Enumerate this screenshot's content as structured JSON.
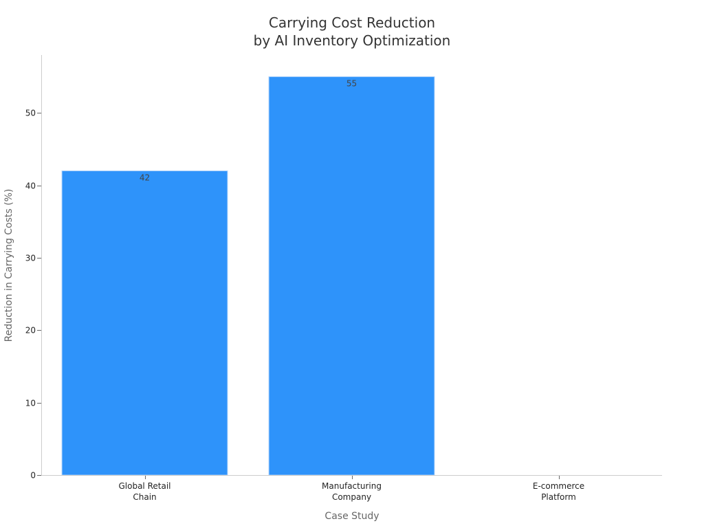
{
  "chart_data": {
    "type": "bar",
    "title": [
      "Carrying Cost Reduction",
      "by AI Inventory Optimization"
    ],
    "xlabel": "Case Study",
    "ylabel": "Reduction in Carrying Costs (%)",
    "categories": [
      [
        "Global Retail",
        "Chain"
      ],
      [
        "Manufacturing",
        "Company"
      ],
      [
        "E-commerce",
        "Platform"
      ]
    ],
    "values": [
      42,
      55,
      null
    ],
    "data_labels": [
      "42",
      "55",
      ""
    ],
    "ylim": [
      0,
      58
    ],
    "yticks": [
      0,
      10,
      20,
      30,
      40,
      50
    ],
    "grid": false,
    "legend": "none",
    "colors": {
      "bar": "#2e93fa",
      "bar_edge": "#a9cffa"
    }
  }
}
